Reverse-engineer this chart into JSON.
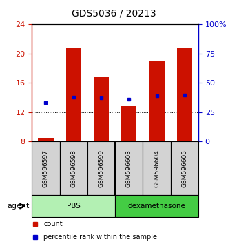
{
  "title": "GDS5036 / 20213",
  "samples": [
    "GSM596597",
    "GSM596598",
    "GSM596599",
    "GSM596603",
    "GSM596604",
    "GSM596605"
  ],
  "red_values": [
    8.5,
    20.7,
    16.8,
    12.8,
    19.0,
    20.7
  ],
  "blue_values": [
    13.3,
    14.1,
    14.0,
    13.8,
    14.2,
    14.3
  ],
  "red_base": 8.0,
  "ylim_left": [
    8,
    24
  ],
  "ylim_right": [
    0,
    100
  ],
  "yticks_left": [
    8,
    12,
    16,
    20,
    24
  ],
  "yticks_right": [
    0,
    25,
    50,
    75,
    100
  ],
  "ytick_labels_right": [
    "0",
    "25",
    "50",
    "75",
    "100%"
  ],
  "groups": [
    {
      "label": "PBS",
      "indices": [
        0,
        1,
        2
      ],
      "color": "#b3f0b3"
    },
    {
      "label": "dexamethasone",
      "indices": [
        3,
        4,
        5
      ],
      "color": "#44cc44"
    }
  ],
  "group_row_label": "agent",
  "bar_color": "#cc1100",
  "marker_color": "#0000cc",
  "bar_width": 0.55,
  "left_axis_color": "#cc1100",
  "right_axis_color": "#0000cc"
}
